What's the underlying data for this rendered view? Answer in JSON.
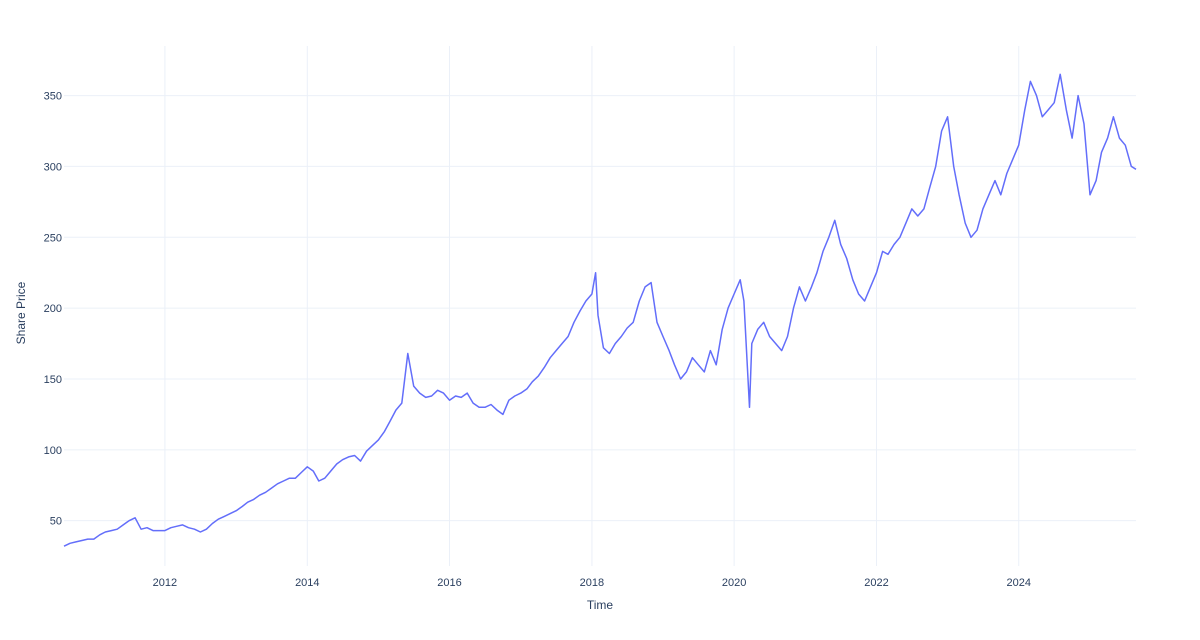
{
  "chart_data": {
    "type": "line",
    "title": "",
    "xlabel": "Time",
    "ylabel": "Share Price",
    "x_range": [
      "2010-08-01",
      "2025-08-25"
    ],
    "ylim": [
      18,
      385
    ],
    "x_ticks": [
      "2012",
      "2014",
      "2016",
      "2018",
      "2020",
      "2022",
      "2024"
    ],
    "y_ticks": [
      50,
      100,
      150,
      200,
      250,
      300,
      350
    ],
    "grid": true,
    "legend": "none",
    "line_color": "#636efa",
    "series": [
      {
        "x": [
          "2010-08-01",
          "2010-09-01",
          "2010-10-01",
          "2010-11-01",
          "2010-12-01",
          "2011-01-01",
          "2011-02-01",
          "2011-03-01",
          "2011-04-01",
          "2011-05-01",
          "2011-06-01",
          "2011-07-01",
          "2011-08-01",
          "2011-09-01",
          "2011-10-01",
          "2011-11-01",
          "2011-12-01",
          "2012-01-01",
          "2012-02-01",
          "2012-03-01",
          "2012-04-01",
          "2012-05-01",
          "2012-06-01",
          "2012-07-01",
          "2012-08-01",
          "2012-09-01",
          "2012-10-01",
          "2012-11-01",
          "2012-12-01",
          "2013-01-01",
          "2013-02-01",
          "2013-03-01",
          "2013-04-01",
          "2013-05-01",
          "2013-06-01",
          "2013-07-01",
          "2013-08-01",
          "2013-09-01",
          "2013-10-01",
          "2013-11-01",
          "2013-12-01",
          "2014-01-01",
          "2014-02-01",
          "2014-03-01",
          "2014-04-01",
          "2014-05-01",
          "2014-06-01",
          "2014-07-01",
          "2014-08-01",
          "2014-09-01",
          "2014-10-01",
          "2014-11-01",
          "2014-12-01",
          "2015-01-01",
          "2015-02-01",
          "2015-03-01",
          "2015-04-01",
          "2015-05-01",
          "2015-06-01",
          "2015-07-01",
          "2015-08-01",
          "2015-09-01",
          "2015-10-01",
          "2015-11-01",
          "2015-12-01",
          "2016-01-01",
          "2016-02-01",
          "2016-03-01",
          "2016-04-01",
          "2016-05-01",
          "2016-06-01",
          "2016-07-01",
          "2016-08-01",
          "2016-09-01",
          "2016-10-01",
          "2016-11-01",
          "2016-12-01",
          "2017-01-01",
          "2017-02-01",
          "2017-03-01",
          "2017-04-01",
          "2017-05-01",
          "2017-06-01",
          "2017-07-01",
          "2017-08-01",
          "2017-09-01",
          "2017-10-01",
          "2017-11-01",
          "2017-12-01",
          "2018-01-01",
          "2018-01-20",
          "2018-02-01",
          "2018-03-01",
          "2018-04-01",
          "2018-05-01",
          "2018-06-01",
          "2018-07-01",
          "2018-08-01",
          "2018-09-01",
          "2018-10-01",
          "2018-11-01",
          "2018-12-01",
          "2019-01-01",
          "2019-02-01",
          "2019-03-01",
          "2019-04-01",
          "2019-05-01",
          "2019-06-01",
          "2019-07-01",
          "2019-08-01",
          "2019-09-01",
          "2019-10-01",
          "2019-11-01",
          "2019-12-01",
          "2020-01-01",
          "2020-02-01",
          "2020-02-20",
          "2020-03-20",
          "2020-04-01",
          "2020-05-01",
          "2020-06-01",
          "2020-07-01",
          "2020-08-01",
          "2020-09-01",
          "2020-10-01",
          "2020-11-01",
          "2020-12-01",
          "2021-01-01",
          "2021-02-01",
          "2021-03-01",
          "2021-04-01",
          "2021-05-01",
          "2021-06-01",
          "2021-07-01",
          "2021-08-01",
          "2021-09-01",
          "2021-10-01",
          "2021-11-01",
          "2021-12-01",
          "2022-01-01",
          "2022-02-01",
          "2022-03-01",
          "2022-04-01",
          "2022-05-01",
          "2022-06-01",
          "2022-07-01",
          "2022-08-01",
          "2022-09-01",
          "2022-10-01",
          "2022-11-01",
          "2022-12-01",
          "2023-01-01",
          "2023-02-01",
          "2023-03-01",
          "2023-04-01",
          "2023-05-01",
          "2023-06-01",
          "2023-07-01",
          "2023-08-01",
          "2023-09-01",
          "2023-10-01",
          "2023-11-01",
          "2023-12-01",
          "2024-01-01",
          "2024-02-01",
          "2024-03-01",
          "2024-04-01",
          "2024-05-01",
          "2024-06-01",
          "2024-07-01",
          "2024-08-01",
          "2024-09-01",
          "2024-10-01",
          "2024-11-01",
          "2024-12-01",
          "2025-01-01",
          "2025-02-01",
          "2025-03-01",
          "2025-04-01",
          "2025-05-01",
          "2025-06-01",
          "2025-07-01",
          "2025-08-01",
          "2025-08-25"
        ],
        "y": [
          32,
          34,
          35,
          36,
          37,
          37,
          40,
          42,
          43,
          44,
          47,
          50,
          52,
          44,
          45,
          43,
          43,
          43,
          45,
          46,
          47,
          45,
          44,
          42,
          44,
          48,
          51,
          53,
          55,
          57,
          60,
          63,
          65,
          68,
          70,
          73,
          76,
          78,
          80,
          80,
          84,
          88,
          85,
          78,
          80,
          85,
          90,
          93,
          95,
          96,
          92,
          99,
          103,
          107,
          113,
          120,
          128,
          133,
          168,
          145,
          140,
          137,
          138,
          142,
          140,
          135,
          138,
          137,
          140,
          133,
          130,
          130,
          132,
          128,
          125,
          135,
          138,
          140,
          143,
          148,
          152,
          158,
          165,
          170,
          175,
          180,
          190,
          198,
          205,
          210,
          225,
          195,
          172,
          168,
          175,
          180,
          186,
          190,
          205,
          215,
          218,
          190,
          180,
          170,
          160,
          150,
          155,
          165,
          160,
          155,
          170,
          160,
          185,
          200,
          210,
          220,
          205,
          130,
          175,
          185,
          190,
          180,
          175,
          170,
          180,
          200,
          215,
          205,
          215,
          225,
          240,
          250,
          262,
          245,
          235,
          220,
          210,
          205,
          215,
          225,
          240,
          238,
          245,
          250,
          260,
          270,
          265,
          270,
          285,
          300,
          325,
          335,
          300,
          280,
          260,
          250,
          255,
          270,
          280,
          290,
          280,
          295,
          305,
          315,
          340,
          360,
          350,
          335,
          340,
          345,
          365,
          340,
          320,
          350,
          330,
          280,
          290,
          310,
          320,
          335,
          320,
          315,
          300,
          298
        ]
      }
    ]
  }
}
